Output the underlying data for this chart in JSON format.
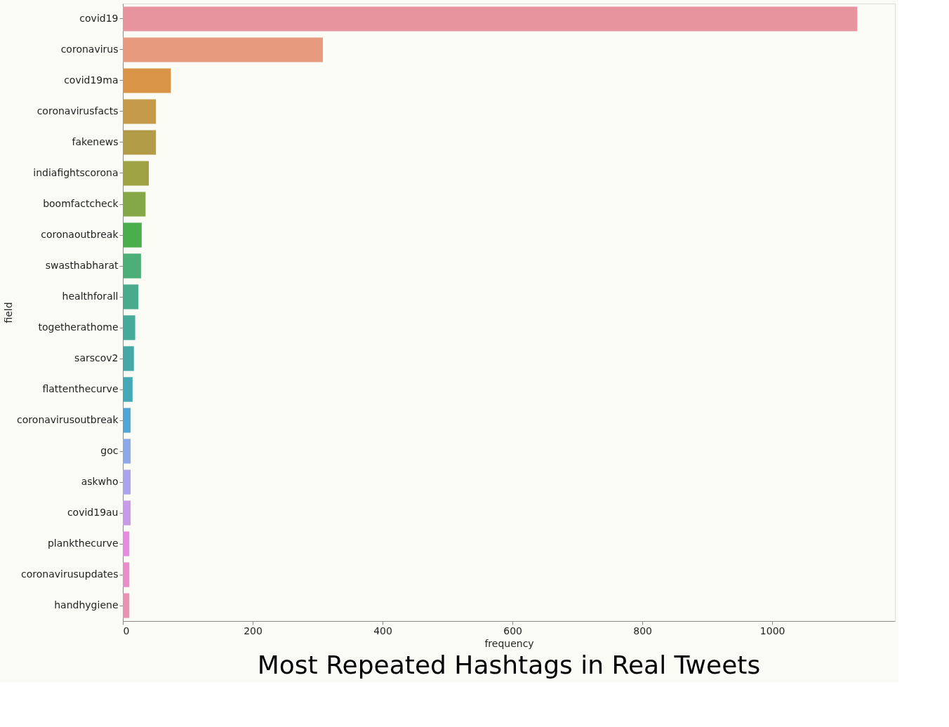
{
  "chart_data": {
    "type": "bar",
    "orientation": "horizontal",
    "title": "Most Repeated Hashtags in Real Tweets",
    "xlabel": "frequency",
    "ylabel": "field",
    "categories": [
      "covid19",
      "coronavirus",
      "covid19ma",
      "coronavirusfacts",
      "fakenews",
      "indiafightscorona",
      "boomfactcheck",
      "coronaoutbreak",
      "swasthabharat",
      "healthforall",
      "togetherathome",
      "sarscov2",
      "flattenthecurve",
      "coronavirusoutbreak",
      "goc",
      "askwho",
      "covid19au",
      "plankthecurve",
      "coronavirusupdates",
      "handhygiene"
    ],
    "values": [
      1131,
      308,
      74,
      51,
      51,
      40,
      35,
      29,
      28,
      24,
      19,
      17,
      15,
      12,
      12,
      12,
      12,
      10,
      10,
      10
    ],
    "colors": [
      "#e8949f",
      "#e79a7e",
      "#d99448",
      "#c59b4a",
      "#b39c48",
      "#9ea243",
      "#84a848",
      "#4aae4c",
      "#4caf78",
      "#4aab8c",
      "#45aa9a",
      "#44a9a6",
      "#45a8b6",
      "#4fa5d6",
      "#8da8e6",
      "#aba4ea",
      "#c79be8",
      "#e48be0",
      "#e88dc8",
      "#e793b4"
    ],
    "xlim": [
      0,
      1189
    ],
    "xticks": [
      0,
      200,
      400,
      600,
      800,
      1000
    ],
    "grid": false
  }
}
